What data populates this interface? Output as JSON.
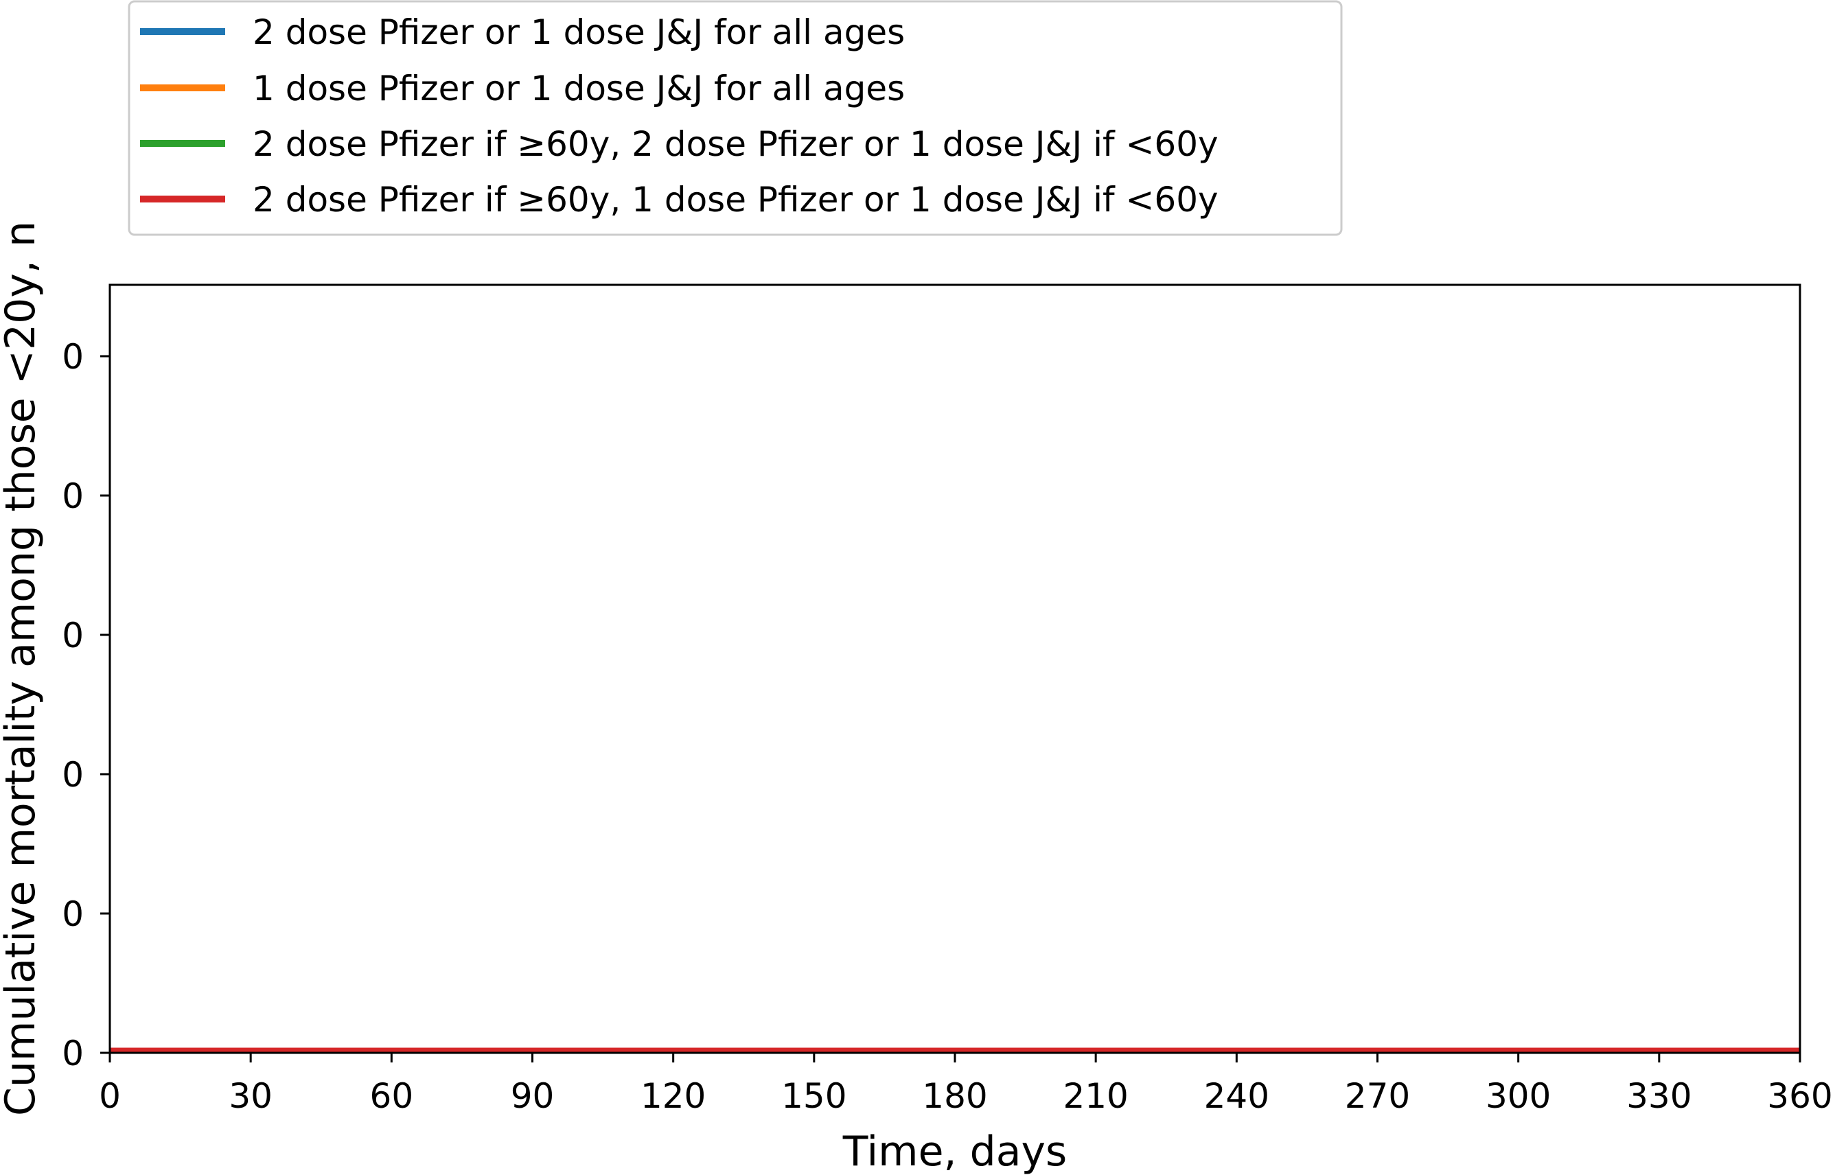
{
  "chart_data": {
    "type": "line",
    "xlabel": "Time, days",
    "ylabel": "Cumulative mortality among those <20y, n",
    "xlim": [
      0,
      360
    ],
    "x_ticks": [
      0,
      30,
      60,
      90,
      120,
      150,
      180,
      210,
      240,
      270,
      300,
      330,
      360
    ],
    "y_tick_labels": [
      "0",
      "0",
      "0",
      "0",
      "0",
      "0"
    ],
    "grid": false,
    "legend_position": "above plot, left",
    "x": [
      0,
      360
    ],
    "series": [
      {
        "name": "2 dose Pfizer or 1 dose J&J for all ages",
        "color": "#1f77b4",
        "values": [
          0,
          0
        ]
      },
      {
        "name": "1 dose Pfizer or 1 dose J&J for all ages",
        "color": "#ff7f0e",
        "values": [
          0,
          0
        ]
      },
      {
        "name": "2 dose Pfizer if ≥60y, 2 dose Pfizer or 1 dose J&J if <60y",
        "color": "#2ca02c",
        "values": [
          0,
          0
        ]
      },
      {
        "name": "2 dose Pfizer if ≥60y, 1 dose Pfizer or 1 dose J&J if <60y",
        "color": "#d62728",
        "values": [
          0,
          0
        ]
      }
    ]
  }
}
